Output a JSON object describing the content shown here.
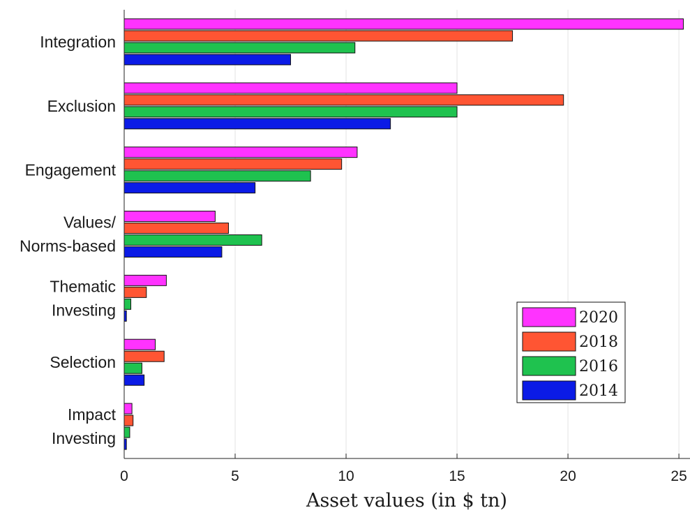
{
  "chart_data": {
    "type": "bar",
    "orientation": "horizontal",
    "title": "",
    "xlabel": "Asset values (in $ tn)",
    "ylabel": "",
    "categories": [
      [
        "Integration"
      ],
      [
        "Exclusion"
      ],
      [
        "Engagement"
      ],
      [
        "Values/",
        "Norms-based"
      ],
      [
        "Thematic",
        "Investing"
      ],
      [
        "Selection"
      ],
      [
        "Impact",
        "Investing"
      ]
    ],
    "series": [
      {
        "name": "2020",
        "color": "#ff33ff",
        "values": [
          25.2,
          15.0,
          10.5,
          4.1,
          1.9,
          1.4,
          0.35
        ]
      },
      {
        "name": "2018",
        "color": "#ff5533",
        "values": [
          17.5,
          19.8,
          9.8,
          4.7,
          1.0,
          1.8,
          0.4
        ]
      },
      {
        "name": "2016",
        "color": "#1fc24f",
        "values": [
          10.4,
          15.0,
          8.4,
          6.2,
          0.3,
          0.8,
          0.25
        ]
      },
      {
        "name": "2014",
        "color": "#0b1be6",
        "values": [
          7.5,
          12.0,
          5.9,
          4.4,
          0.1,
          0.9,
          0.1
        ]
      }
    ],
    "xlim": [
      0,
      25.5
    ],
    "xticks": [
      0,
      5,
      10,
      15,
      20,
      25
    ],
    "grid": "vertical",
    "legend_position": "bottom-right"
  }
}
